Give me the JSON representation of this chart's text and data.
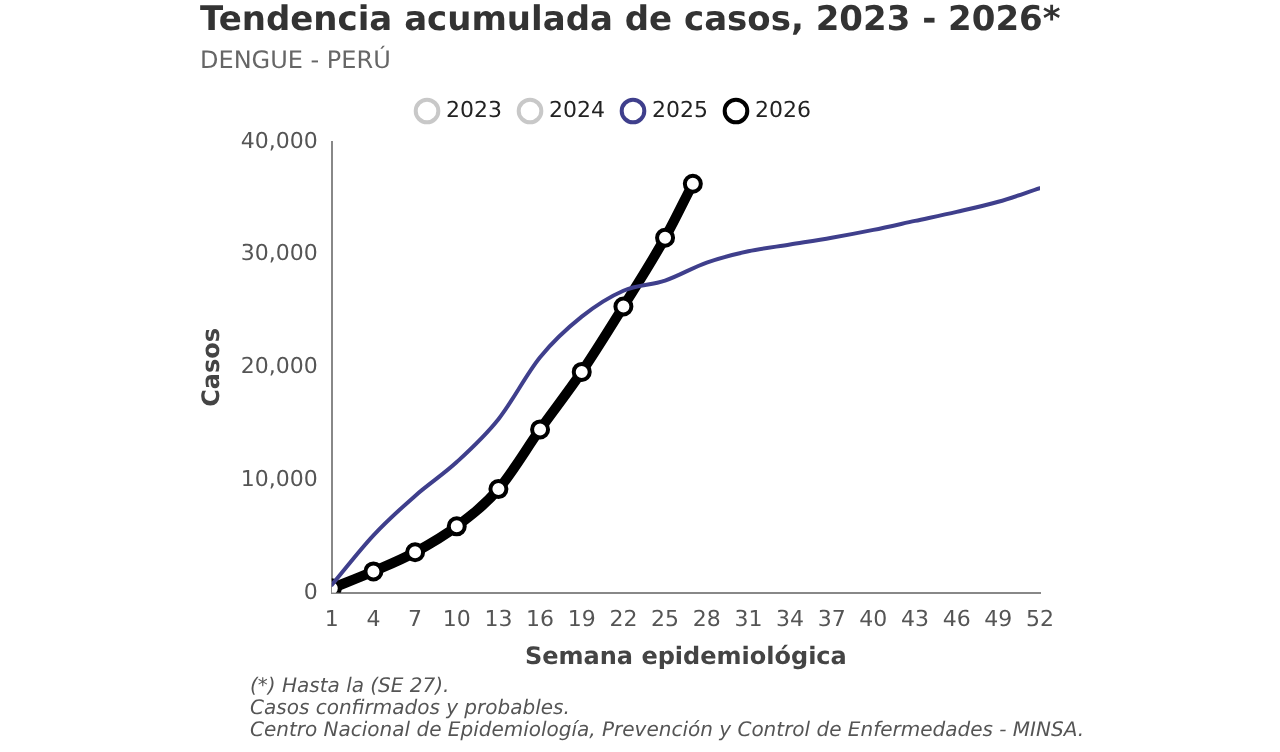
{
  "chart_data": {
    "type": "line",
    "title": "Tendencia acumulada de casos, 2023 - 2026*",
    "subtitle": "DENGUE - PERÚ",
    "xlabel": "Semana epidemiológica",
    "ylabel": "Casos",
    "series": [
      {
        "name": "2023",
        "color": "#c8c8c8",
        "marker": "circle"
      },
      {
        "name": "2024",
        "color": "#c8c8c8",
        "marker": "circle"
      },
      {
        "name": "2025",
        "color": "#3f3f8c",
        "marker": "none",
        "x": [
          1,
          4,
          7,
          10,
          13,
          16,
          19,
          22,
          25,
          28,
          31,
          34,
          37,
          40,
          43,
          46,
          49,
          52
        ],
        "values": [
          700,
          5100,
          8600,
          11600,
          15400,
          20900,
          24500,
          26800,
          27700,
          29300,
          30300,
          30900,
          31500,
          32200,
          33000,
          33800,
          34700,
          35900
        ]
      },
      {
        "name": "2026",
        "color": "#000000",
        "marker": "circle",
        "x": [
          1,
          4,
          7,
          10,
          13,
          16,
          19,
          22,
          25,
          27
        ],
        "values": [
          400,
          1900,
          3600,
          5900,
          9200,
          14500,
          19600,
          25400,
          31500,
          36300
        ]
      }
    ],
    "xlim": [
      1,
      52
    ],
    "xticks": [
      1,
      4,
      7,
      10,
      13,
      16,
      19,
      22,
      25,
      28,
      31,
      34,
      37,
      40,
      43,
      46,
      49,
      52
    ],
    "ylim": [
      0,
      40000
    ],
    "yticks": [
      0,
      {
        "value": 10000,
        "label": "10,000"
      },
      {
        "value": 20000,
        "label": "20,000"
      },
      {
        "value": 30000,
        "label": "30,000"
      },
      {
        "value": 40000,
        "label": "40,000"
      }
    ],
    "grid": false,
    "legend": "top",
    "annotations": [
      "(*) Hasta la (SE 27).",
      "Casos confirmados y probables.",
      "Centro Nacional de Epidemiología, Prevención y Control de Enfermedades - MINSA."
    ]
  }
}
